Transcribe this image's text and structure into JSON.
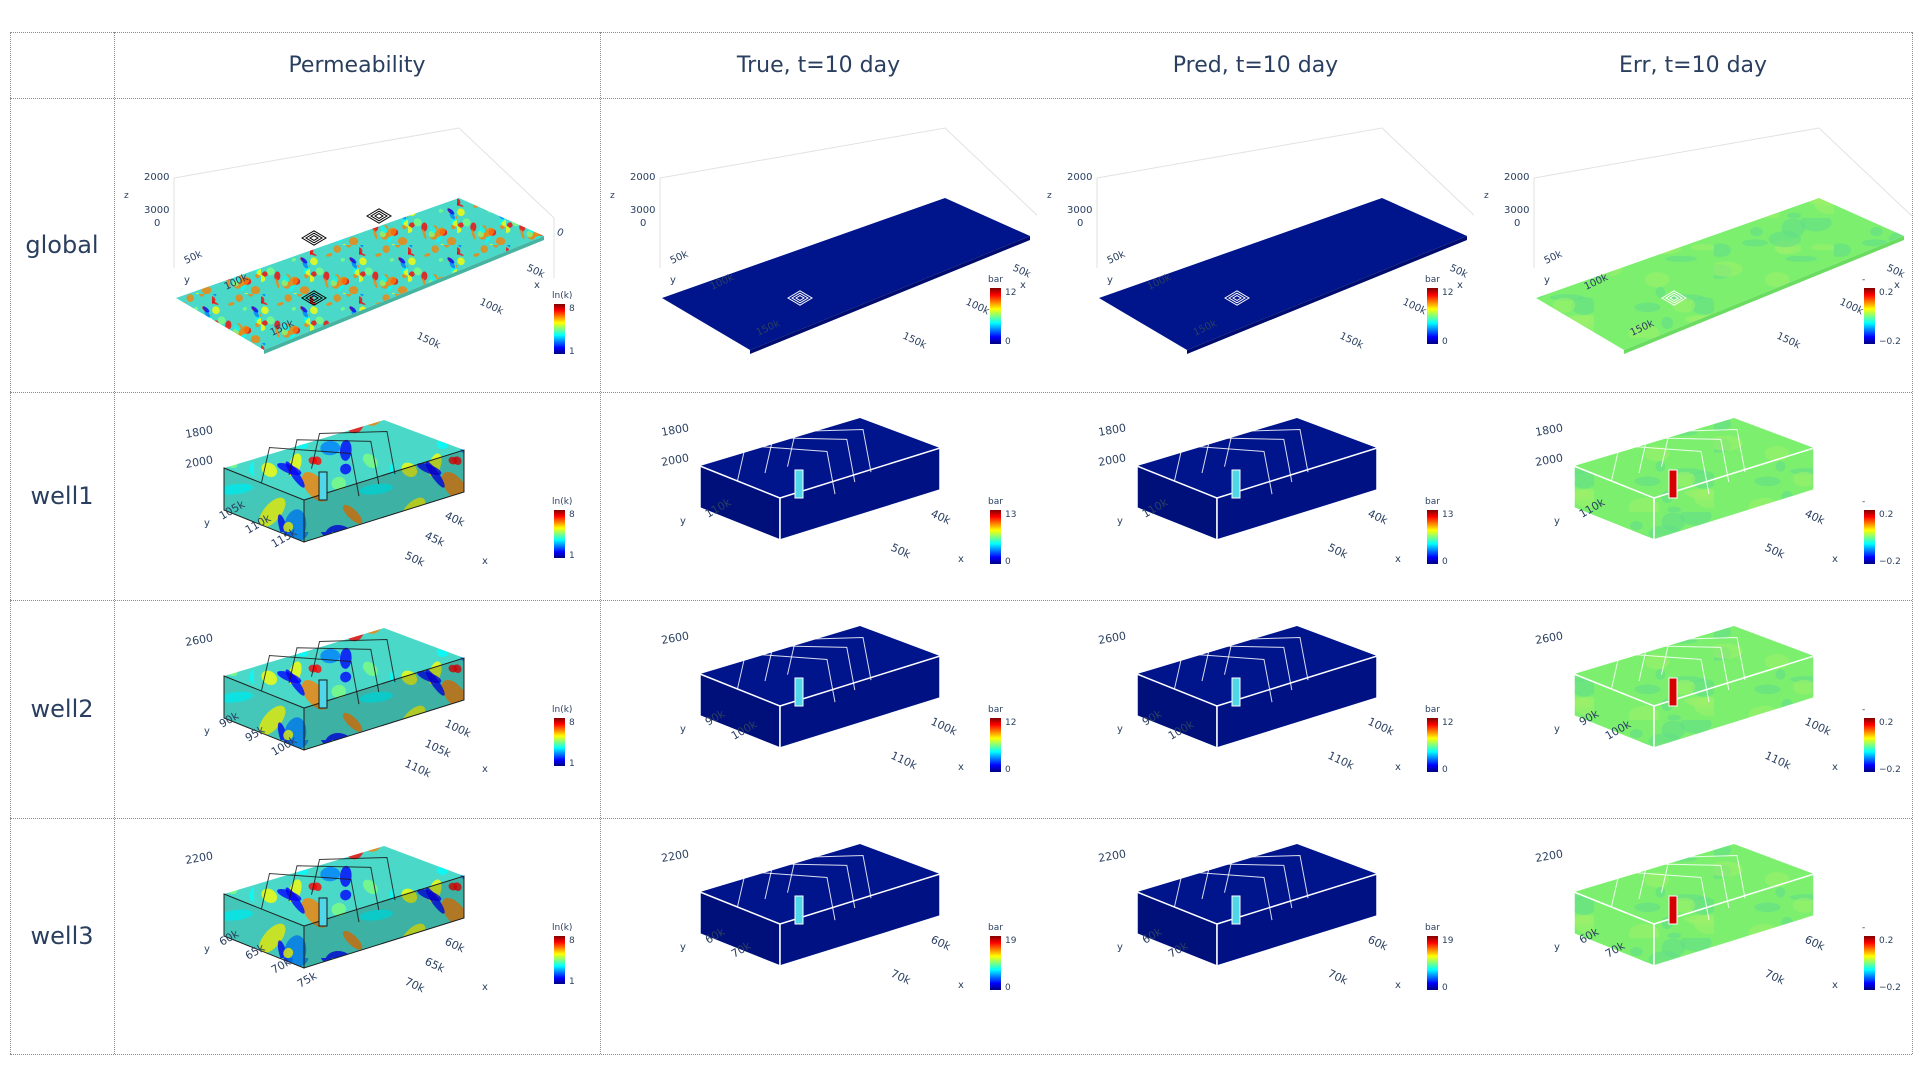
{
  "columns": [
    "Permeability",
    "True, t=10 day",
    "Pred, t=10 day",
    "Err, t=10 day"
  ],
  "rows": [
    {
      "label": "global",
      "kind": "global",
      "zTicks": [
        "2000",
        "3000",
        "0"
      ],
      "zLabel": "z",
      "yTicks": [
        "50k",
        "100k",
        "150k"
      ],
      "yLabel": "y",
      "xTicks": [
        "0",
        "50k",
        "100k",
        "150k"
      ],
      "xLabel": "x",
      "perm": {
        "title": "ln(k)",
        "max": "8",
        "min": "1"
      },
      "trueBar": {
        "title": "bar",
        "max": "12",
        "min": "0"
      },
      "predBar": {
        "title": "bar",
        "max": "12",
        "min": "0"
      },
      "errBar": {
        "title": "-",
        "max": "0.2",
        "min": "−0.2"
      }
    },
    {
      "label": "well1",
      "kind": "well",
      "zTicks": [
        "1800",
        "2000"
      ],
      "zLabel": "z",
      "yTicks": [
        "105k",
        "110k",
        "115k"
      ],
      "yTicksShort": [
        "110k"
      ],
      "yLabel": "y",
      "xTicks": [
        "40k",
        "45k",
        "50k"
      ],
      "xTicksShort": [
        "40k",
        "50k"
      ],
      "xLabel": "x",
      "perm": {
        "title": "ln(k)",
        "max": "8",
        "min": "1"
      },
      "trueBar": {
        "title": "bar",
        "max": "13",
        "min": "0"
      },
      "predBar": {
        "title": "bar",
        "max": "13",
        "min": "0"
      },
      "errBar": {
        "title": "-",
        "max": "0.2",
        "min": "−0.2"
      }
    },
    {
      "label": "well2",
      "kind": "well",
      "zTicks": [
        "2600"
      ],
      "zLabel": "z",
      "yTicks": [
        "90k",
        "95k",
        "100k"
      ],
      "yTicksShort": [
        "90k",
        "100k"
      ],
      "yLabel": "y",
      "xTicks": [
        "100k",
        "105k",
        "110k"
      ],
      "xTicksShort": [
        "100k",
        "110k"
      ],
      "xLabel": "x",
      "perm": {
        "title": "ln(k)",
        "max": "8",
        "min": "1"
      },
      "trueBar": {
        "title": "bar",
        "max": "12",
        "min": "0"
      },
      "predBar": {
        "title": "bar",
        "max": "12",
        "min": "0"
      },
      "errBar": {
        "title": "-",
        "max": "0.2",
        "min": "−0.2"
      }
    },
    {
      "label": "well3",
      "kind": "well",
      "zTicks": [
        "2200"
      ],
      "zLabel": "z",
      "yTicks": [
        "60k",
        "65k",
        "70k",
        "75k"
      ],
      "yTicksShort": [
        "60k",
        "70k"
      ],
      "yLabel": "y",
      "xTicks": [
        "60k",
        "65k",
        "70k"
      ],
      "xTicksShort": [
        "60k",
        "70k"
      ],
      "xLabel": "x",
      "perm": {
        "title": "ln(k)",
        "max": "8",
        "min": "1"
      },
      "trueBar": {
        "title": "bar",
        "max": "19",
        "min": "0"
      },
      "predBar": {
        "title": "bar",
        "max": "19",
        "min": "0"
      },
      "errBar": {
        "title": "-",
        "max": "0.2",
        "min": "−0.2"
      }
    }
  ],
  "colors": {
    "pressureDomain": "#00148c",
    "errorDomain": "#7cf06e",
    "jetScale": [
      "#00007f",
      "#0000ff",
      "#007fff",
      "#00ffff",
      "#7fff7f",
      "#ffff00",
      "#ff7f00",
      "#ff0000",
      "#7f0000"
    ],
    "gridLine": "#8c8c8c",
    "text": "#2a3f5f"
  }
}
